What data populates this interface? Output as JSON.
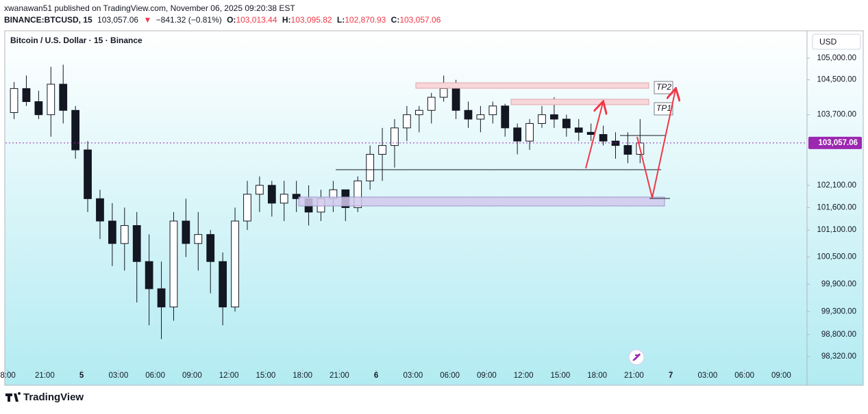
{
  "header": {
    "published": "xwanawan51 published on TradingView.com, November 06, 2025 09:20:38 EST",
    "symbol": "BINANCE:BTCUSD, 15",
    "last": "103,057.06",
    "arrow": "▼",
    "change": "−841.32 (−0.81%)",
    "open_label": "O:",
    "open": "103,013.44",
    "high_label": "H:",
    "high": "103,095.82",
    "low_label": "L:",
    "low": "102,870.93",
    "close_label": "C:",
    "close": "103,057.06"
  },
  "footer": {
    "brand": "TradingView"
  },
  "chart_data": {
    "type": "candlestick",
    "title": "Bitcoin / U.S. Dollar · 15 · Binance",
    "currency": "USD",
    "log": true,
    "up_color": "#ffffff",
    "down_color": "#131722",
    "drawings": {
      "tp2": "TP2",
      "tp1": "TP1"
    },
    "last_price": {
      "value": 103057.06,
      "label": "103,057.06"
    },
    "xlim": [
      17.8,
      83.1
    ],
    "xticks": [
      {
        "value": 18,
        "label": "8:00"
      },
      {
        "value": 21,
        "label": "21:00"
      },
      {
        "value": 24,
        "label": "5"
      },
      {
        "value": 27,
        "label": "03:00"
      },
      {
        "value": 30,
        "label": "06:00"
      },
      {
        "value": 33,
        "label": "09:00"
      },
      {
        "value": 36,
        "label": "12:00"
      },
      {
        "value": 39,
        "label": "15:00"
      },
      {
        "value": 42,
        "label": "18:00"
      },
      {
        "value": 45,
        "label": "21:00"
      },
      {
        "value": 48,
        "label": "6"
      },
      {
        "value": 51,
        "label": "03:00"
      },
      {
        "value": 54,
        "label": "06:00"
      },
      {
        "value": 57,
        "label": "09:00"
      },
      {
        "value": 60,
        "label": "12:00"
      },
      {
        "value": 63,
        "label": "15:00"
      },
      {
        "value": 66,
        "label": "18:00"
      },
      {
        "value": 69,
        "label": "21:00"
      },
      {
        "value": 72,
        "label": "7"
      },
      {
        "value": 75,
        "label": "03:00"
      },
      {
        "value": 78,
        "label": "06:00"
      },
      {
        "value": 81,
        "label": "09:00"
      }
    ],
    "ylim": [
      98070,
      105635
    ],
    "yticks": [
      {
        "value": 105000,
        "label": "105,000.00"
      },
      {
        "value": 104500,
        "label": "104,500.00"
      },
      {
        "value": 103700,
        "label": "103,700.00"
      },
      {
        "value": 102100,
        "label": "102,100.00"
      },
      {
        "value": 101600,
        "label": "101,600.00"
      },
      {
        "value": 101100,
        "label": "101,100.00"
      },
      {
        "value": 100500,
        "label": "100,500.00"
      },
      {
        "value": 99900,
        "label": "99,900.00"
      },
      {
        "value": 99300,
        "label": "99,300.00"
      },
      {
        "value": 98800,
        "label": "98,800.00"
      },
      {
        "value": 98320,
        "label": "98,320.00"
      }
    ],
    "x": [
      18,
      19,
      20,
      21,
      22,
      23,
      24,
      25,
      26,
      27,
      28,
      29,
      30,
      31,
      32,
      33,
      34,
      35,
      36,
      37,
      38,
      39,
      40,
      41,
      42,
      43,
      44,
      45,
      46,
      47,
      48,
      49,
      50,
      51,
      52,
      53,
      54,
      55,
      56,
      57,
      58,
      59,
      60,
      61,
      62,
      63,
      64,
      65,
      66,
      67,
      68,
      69
    ],
    "open": [
      103750,
      104300,
      104000,
      103700,
      104400,
      103800,
      102900,
      101800,
      101300,
      100800,
      101200,
      100400,
      99800,
      99400,
      101300,
      100800,
      101000,
      100400,
      99400,
      101300,
      101900,
      102100,
      101700,
      101900,
      101800,
      101500,
      101800,
      102000,
      101600,
      102200,
      102800,
      103000,
      103400,
      103700,
      103800,
      104100,
      104300,
      103800,
      103600,
      103700,
      103900,
      103400,
      103100,
      103500,
      103700,
      103600,
      103400,
      103300,
      103250,
      103100,
      103000,
      102800
    ],
    "high": [
      104450,
      104600,
      104250,
      104800,
      104850,
      103900,
      103100,
      102000,
      101700,
      101600,
      101500,
      101000,
      100400,
      101500,
      101800,
      101500,
      101100,
      100600,
      101600,
      102200,
      102300,
      102200,
      102200,
      102200,
      102100,
      102000,
      102200,
      102000,
      102300,
      103000,
      103400,
      103600,
      103900,
      103900,
      104200,
      104600,
      104500,
      104000,
      103900,
      104000,
      103950,
      103500,
      103600,
      103900,
      104100,
      103700,
      103600,
      103500,
      103450,
      103300,
      103300,
      103600
    ],
    "low": [
      103600,
      103900,
      103600,
      103200,
      103500,
      102700,
      101500,
      100900,
      100300,
      100200,
      99500,
      99000,
      98700,
      99100,
      100500,
      100200,
      99700,
      99000,
      99300,
      101100,
      101500,
      101400,
      101300,
      101500,
      101200,
      101300,
      101500,
      101300,
      101500,
      102000,
      102200,
      102500,
      103100,
      103300,
      103500,
      104000,
      103600,
      103400,
      103300,
      103500,
      103200,
      102800,
      102900,
      103400,
      103400,
      103200,
      103100,
      103100,
      103000,
      102700,
      102600,
      102600
    ],
    "close": [
      104300,
      104000,
      103700,
      104400,
      103800,
      102900,
      101800,
      101300,
      100800,
      101200,
      100400,
      99800,
      99400,
      101300,
      100800,
      101000,
      100400,
      99400,
      101300,
      101900,
      102100,
      101700,
      101900,
      101800,
      101500,
      101800,
      102000,
      101600,
      102200,
      102800,
      103000,
      103400,
      103700,
      103800,
      104100,
      104300,
      103800,
      103600,
      103700,
      103900,
      103400,
      103100,
      103500,
      103700,
      103600,
      103400,
      103300,
      103250,
      103100,
      103000,
      102800,
      103057.06
    ]
  }
}
